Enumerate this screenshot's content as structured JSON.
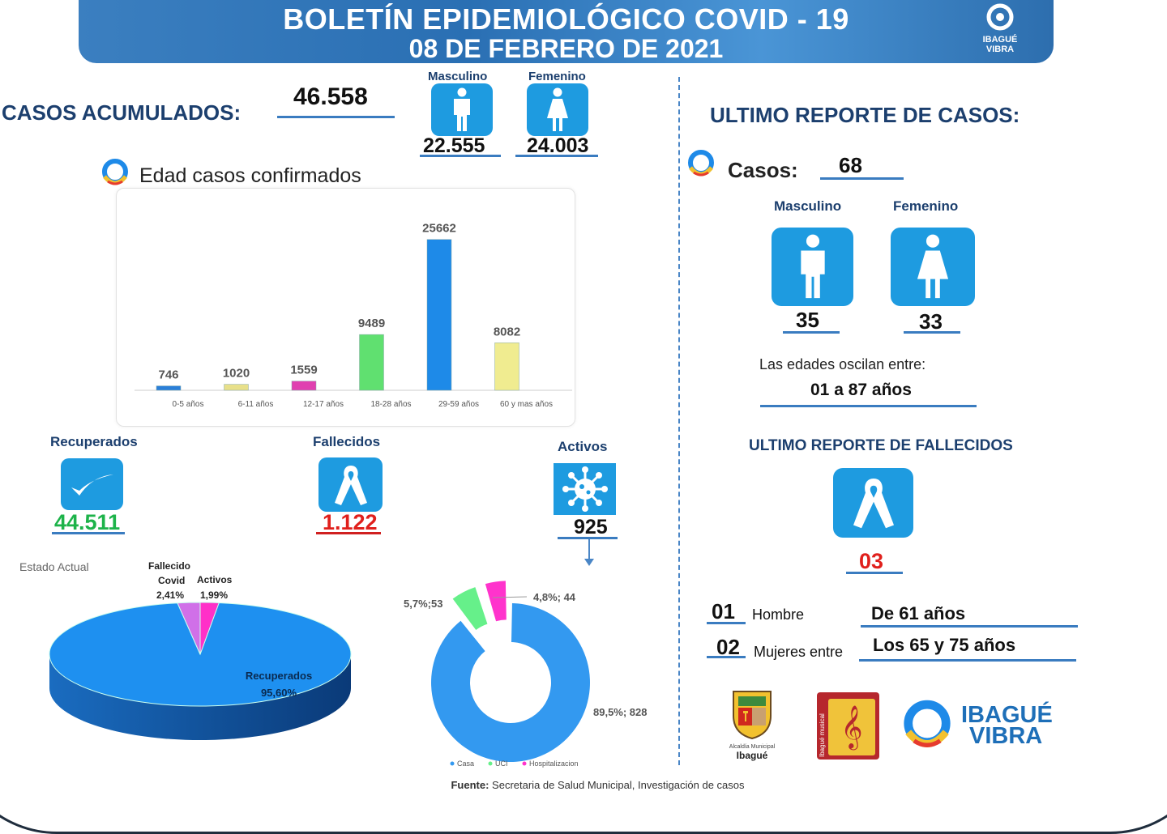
{
  "header": {
    "title": "BOLETÍN EPIDEMIOLÓGICO COVID - 19",
    "date": "08 DE FEBRERO DE 2021",
    "logo_text": "IBAGUÉ VIBRA"
  },
  "acumulados": {
    "label": "CASOS ACUMULADOS:",
    "total": "46.558",
    "male_label": "Masculino",
    "male": "22.555",
    "female_label": "Femenino",
    "female": "24.003"
  },
  "age_section": {
    "title": "Edad casos confirmados"
  },
  "status": {
    "recuperados_label": "Recuperados",
    "recuperados": "44.511",
    "fallecidos_label": "Fallecidos",
    "fallecidos": "1.122",
    "activos_label": "Activos",
    "activos": "925"
  },
  "colors": {
    "primary": "#1e9be0",
    "dark_blue": "#1c3f6e",
    "green": "#1db34a",
    "red": "#e0201c"
  },
  "chart_data": [
    {
      "type": "bar",
      "title": "",
      "categories": [
        "0-5 años",
        "6-11 años",
        "12-17 años",
        "18-28 años",
        "29-59 años",
        "60 y mas años"
      ],
      "values": [
        746,
        1020,
        1559,
        9489,
        25662,
        8082
      ],
      "labels": [
        "746",
        "1020",
        "1559",
        "9489",
        "25662",
        "8082"
      ],
      "colors": [
        "#2a7fd8",
        "#e8e08a",
        "#e040b0",
        "#60e070",
        "#1e8ae8",
        "#f0ec90"
      ],
      "ylim": [
        0,
        27000
      ],
      "grid": false
    },
    {
      "type": "pie",
      "title": "Estado Actual",
      "categories": [
        "Recuperados",
        "Fallecido Covid",
        "Activos"
      ],
      "values": [
        95.6,
        2.41,
        1.99
      ],
      "labels": [
        "95,60%",
        "2,41%",
        "1,99%"
      ],
      "label_names": [
        "Recuperados",
        "Fallecido",
        "Covid",
        "Activos"
      ],
      "colors": [
        "#1e90f0",
        "#d070e8",
        "#ff30c8"
      ]
    },
    {
      "type": "pie",
      "subtype": "donut",
      "categories": [
        "Casa",
        "UCI",
        "Hospitalizacion"
      ],
      "values": [
        828,
        53,
        44
      ],
      "labels": [
        "89,5%; 828",
        "5,7%;53",
        "4,8%; 44"
      ],
      "colors": [
        "#3399f0",
        "#66f08a",
        "#ff33cc"
      ],
      "legend": "bottom"
    }
  ],
  "ultimo": {
    "title": "ULTIMO REPORTE DE CASOS:",
    "casos_label": "Casos:",
    "casos": "68",
    "male_label": "Masculino",
    "male": "35",
    "female_label": "Femenino",
    "female": "33",
    "range_label": "Las edades oscilan entre:",
    "range": "01 a 87 años"
  },
  "fallecidos_reporte": {
    "title": "ULTIMO REPORTE DE FALLECIDOS",
    "total": "03",
    "rows": [
      {
        "count": "01",
        "label": "Hombre",
        "detail": "De 61 años"
      },
      {
        "count": "02",
        "label": "Mujeres entre",
        "detail": "Los 65 y 75 años"
      }
    ]
  },
  "logos": {
    "alcaldia_line1": "Alcaldía Municipal",
    "alcaldia_line2": "Ibagué",
    "music": "Ibagué musical",
    "vibra1": "IBAGUÉ",
    "vibra2": "VIBRA"
  },
  "footer": {
    "bold": "Fuente:",
    "text": " Secretaria de Salud Municipal, Investigación de casos"
  }
}
